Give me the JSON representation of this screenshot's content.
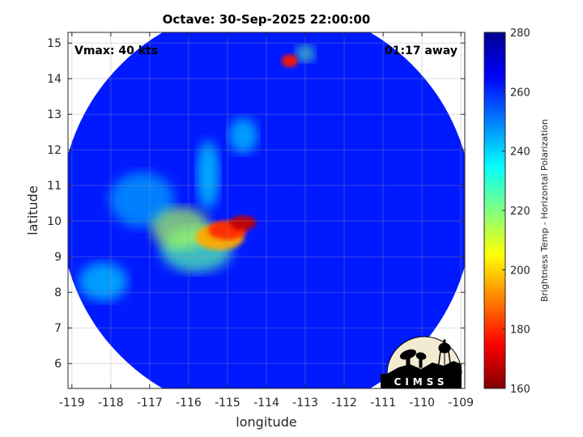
{
  "chart_data": {
    "type": "heatmap",
    "title": "Octave: 30-Sep-2025 22:00:00",
    "xlabel": "longitude",
    "ylabel": "latitude",
    "xlim": [
      -119.1,
      -108.9
    ],
    "ylim": [
      5.3,
      15.3
    ],
    "xticks": [
      -119,
      -118,
      -117,
      -116,
      -115,
      -114,
      -113,
      -112,
      -111,
      -110,
      -109
    ],
    "yticks": [
      6,
      7,
      8,
      9,
      10,
      11,
      12,
      13,
      14,
      15
    ],
    "grid": true,
    "colorbar": {
      "label": "Brightness Temp - Horizontal Polarization",
      "range": [
        160,
        280
      ],
      "ticks": [
        160,
        180,
        200,
        220,
        240,
        260,
        280
      ],
      "colormap": "jet"
    },
    "annotations": {
      "vmax": "Vmax: 40 kts",
      "time_offset": "01:17 away",
      "logo": "CIMSS"
    },
    "swath": {
      "center": [
        -114.0,
        10.3
      ],
      "radius_deg": 5.3,
      "background_value": 262
    },
    "features": [
      {
        "name": "convective-core",
        "lon": -114.6,
        "lat": 9.95,
        "value": 168
      },
      {
        "name": "core-west",
        "lon": -115.0,
        "lat": 9.75,
        "value": 180
      },
      {
        "name": "eye-wall-south",
        "lon": -115.2,
        "lat": 9.55,
        "value": 195
      },
      {
        "name": "rainband-west",
        "lon": -116.2,
        "lat": 9.8,
        "value": 215
      },
      {
        "name": "rainband-sw",
        "lon": -115.8,
        "lat": 9.2,
        "value": 225
      },
      {
        "name": "northern-band",
        "lon": -115.5,
        "lat": 11.3,
        "value": 238
      },
      {
        "name": "north-band-upper",
        "lon": -114.6,
        "lat": 12.4,
        "value": 240
      },
      {
        "name": "north-cell",
        "lon": -113.4,
        "lat": 14.5,
        "value": 178
      },
      {
        "name": "west-edge-cloud",
        "lon": -118.2,
        "lat": 8.3,
        "value": 240
      },
      {
        "name": "west-cloud-upper",
        "lon": -117.2,
        "lat": 10.6,
        "value": 245
      },
      {
        "name": "east-cell",
        "lon": -113.0,
        "lat": 14.7,
        "value": 225
      }
    ]
  }
}
